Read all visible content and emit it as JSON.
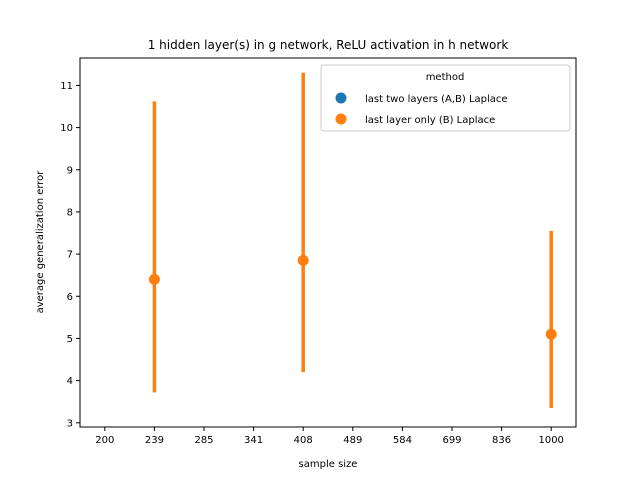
{
  "chart_data": {
    "type": "scatter",
    "title": "1 hidden layer(s) in g network, ReLU activation in h network",
    "xlabel": "sample size",
    "ylabel": "average generalization error",
    "categories": [
      "200",
      "239",
      "285",
      "341",
      "408",
      "489",
      "584",
      "699",
      "836",
      "1000"
    ],
    "ylim": [
      2.9,
      11.65
    ],
    "yticks": [
      3,
      4,
      5,
      6,
      7,
      8,
      9,
      10,
      11
    ],
    "grid": false,
    "legend": {
      "title": "method",
      "placement": "top-right",
      "entries": [
        {
          "label": "last two layers (A,B) Laplace",
          "color": "#1f77b4"
        },
        {
          "label": "last layer only (B) Laplace",
          "color": "#ff7f0e"
        }
      ]
    },
    "series": [
      {
        "name": "last two layers (A,B) Laplace",
        "color": "#1f77b4",
        "points": []
      },
      {
        "name": "last layer only (B) Laplace",
        "color": "#ff7f0e",
        "points": [
          {
            "x": "239",
            "y": 6.4,
            "low": 3.72,
            "high": 10.62
          },
          {
            "x": "408",
            "y": 6.85,
            "low": 4.2,
            "high": 11.3
          },
          {
            "x": "1000",
            "y": 5.1,
            "low": 3.35,
            "high": 7.55
          }
        ]
      }
    ]
  }
}
